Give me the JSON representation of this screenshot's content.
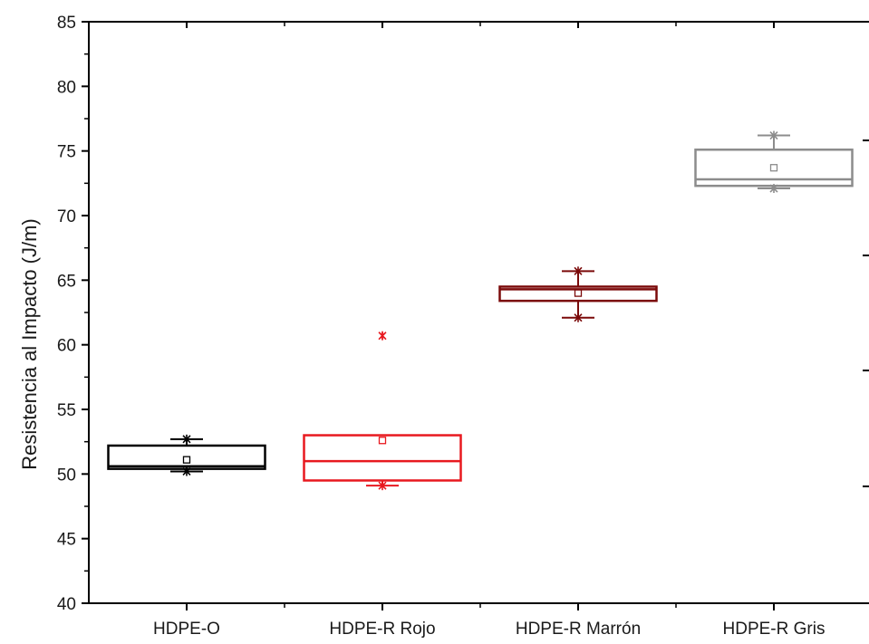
{
  "chart_data": {
    "type": "box",
    "title": "",
    "xlabel": "",
    "ylabel": "Resistencia al Impacto (J/m)",
    "ylim": [
      40,
      85
    ],
    "yticks": [
      40,
      45,
      50,
      55,
      60,
      65,
      70,
      75,
      80,
      85
    ],
    "grid": false,
    "legend": "none",
    "categories": [
      "HDPE-O",
      "HDPE-R Rojo",
      "HDPE-R Marrón",
      "HDPE-R Gris"
    ],
    "boxes": [
      {
        "category": "HDPE-O",
        "color": "#000000",
        "q1": 50.4,
        "median": 50.6,
        "q3": 52.2,
        "mean": 51.1,
        "whisker_low": 50.2,
        "whisker_high": 52.7,
        "min": 50.2,
        "max": 52.7,
        "outliers": []
      },
      {
        "category": "HDPE-R Rojo",
        "color": "#e8191f",
        "q1": 49.5,
        "median": 51.0,
        "q3": 53.0,
        "mean": 52.6,
        "whisker_low": 49.1,
        "whisker_high": 53.0,
        "min": 49.1,
        "max": 60.7,
        "outliers": [
          60.7
        ]
      },
      {
        "category": "HDPE-R Marrón",
        "color": "#7b0a0a",
        "q1": 63.4,
        "median": 64.3,
        "q3": 64.5,
        "mean": 64.0,
        "whisker_low": 62.1,
        "whisker_high": 65.7,
        "min": 62.1,
        "max": 65.7,
        "outliers": []
      },
      {
        "category": "HDPE-R Gris",
        "color": "#8c8c8c",
        "q1": 72.3,
        "median": 72.8,
        "q3": 75.1,
        "mean": 73.7,
        "whisker_low": 72.1,
        "whisker_high": 76.2,
        "min": 72.1,
        "max": 76.2,
        "outliers": []
      }
    ]
  }
}
